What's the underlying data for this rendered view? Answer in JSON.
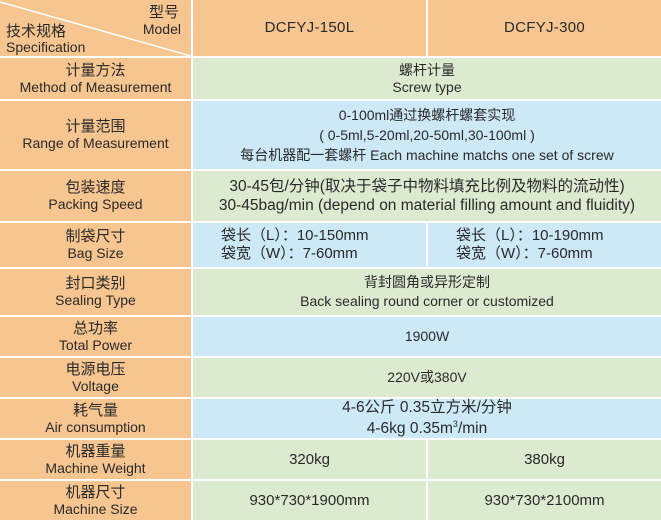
{
  "header": {
    "spec_zh": "技术规格",
    "spec_en": "Specification",
    "model_zh": "型号",
    "model_en": "Model",
    "models": [
      "DCFYJ-150L",
      "DCFYJ-300"
    ]
  },
  "rows": {
    "method": {
      "zh": "计量方法",
      "en": "Method of Measurement",
      "v1": "螺杆计量",
      "v2": "Screw type"
    },
    "range": {
      "zh": "计量范围",
      "en": "Range of Measurement",
      "v1": "0-100ml通过换螺杆螺套实现",
      "v2": "( 0-5ml,5-20ml,20-50ml,30-100ml )",
      "v3": "每台机器配一套螺杆  Each machine matchs one set of screw"
    },
    "speed": {
      "zh": "包装速度",
      "en": "Packing Speed",
      "v1": "30-45包/分钟(取决于袋子中物料填充比例及物料的流动性)",
      "v2": "30-45bag/min (depend on material filling amount and fluidity)"
    },
    "bag": {
      "zh": "制袋尺寸",
      "en": "Bag Size",
      "a1": "袋长（L）：10-150mm",
      "a2": "袋宽（W）：7-60mm",
      "b1": "袋长（L）：10-190mm",
      "b2": "袋宽（W）：7-60mm"
    },
    "sealing": {
      "zh": "封口类别",
      "en": "Sealing Type",
      "v1": "背封圆角或异形定制",
      "v2": "Back sealing round corner or customized"
    },
    "power": {
      "zh": "总功率",
      "en": "Total Power",
      "v1": "1900W"
    },
    "voltage": {
      "zh": "电源电压",
      "en": "Voltage",
      "v1": "220V或380V"
    },
    "air": {
      "zh": "耗气量",
      "en": "Air consumption",
      "v1": "4-6公斤  0.35立方米/分钟",
      "v2a": "4-6kg  0.35m",
      "v2sup": "3",
      "v2b": "/min"
    },
    "weight": {
      "zh": "机器重量",
      "en": "Machine Weight",
      "a": "320kg",
      "b": "380kg"
    },
    "size": {
      "zh": "机器尺寸",
      "en": "Machine Size",
      "a": "930*730*1900mm",
      "b": "930*730*2100mm"
    }
  },
  "colors": {
    "label_bg": "#f6c590",
    "green_row": "#dcebd0",
    "blue_row": "#cde8f6"
  }
}
